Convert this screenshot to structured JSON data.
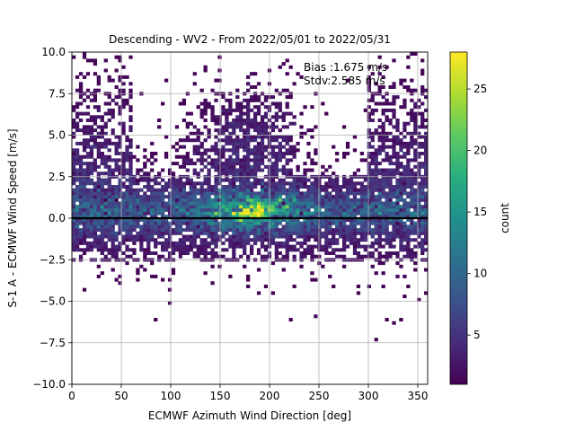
{
  "chart_data": {
    "type": "heatmap",
    "title": "Descending - WV2 - From 2022/05/01 to 2022/05/31",
    "xlabel": "ECMWF Azimuth Wind Direction [deg]",
    "ylabel": "S-1 A - ECMWF Wind Speed [m/s]",
    "xlim": [
      0,
      360
    ],
    "ylim": [
      -10,
      10
    ],
    "xticks": [
      "0",
      "50",
      "100",
      "150",
      "200",
      "250",
      "300",
      "350"
    ],
    "yticks": [
      "−10.0",
      "−7.5",
      "−5.0",
      "−2.5",
      "0.0",
      "2.5",
      "5.0",
      "7.5",
      "10.0"
    ],
    "grid": true,
    "reference_line_y": 0,
    "annotations": [
      "Bias :1.675 m/s",
      "Stdv:2.585 m/s"
    ],
    "colorbar": {
      "label": "count",
      "range": [
        1,
        28
      ],
      "ticks": [
        "5",
        "10",
        "15",
        "20",
        "25"
      ],
      "colormap": "viridis"
    },
    "bins": {
      "x_bin_width_deg": 3.6,
      "y_bin_width_ms": 0.2
    },
    "density_summary": {
      "peak_location": {
        "direction_deg": 185,
        "speed_diff_ms": 0.5,
        "count": 28
      },
      "dense_band_speed_range_ms": [
        -2.5,
        2.5
      ],
      "sparse_cells_present_to_ms": [
        -8,
        10
      ]
    }
  }
}
